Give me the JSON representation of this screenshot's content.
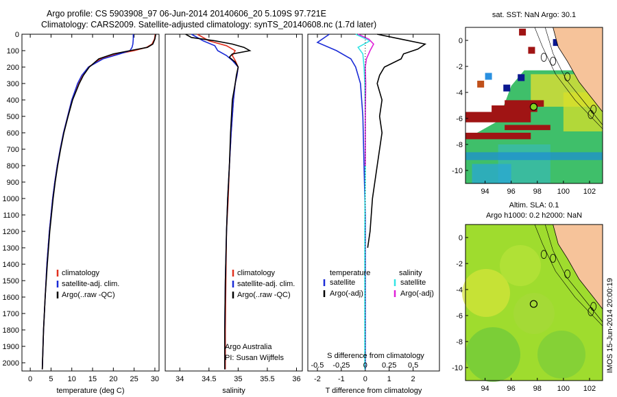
{
  "header": {
    "title_line1": "Argo profile: CS 5903908_97 06-Jun-2014 20140606_20 5.109S 97.721E",
    "title_line2": "Climatology: CARS2009. Satellite-adjusted climatology: synTS_20140608.nc (1.7d later)"
  },
  "colors": {
    "climatology": "#e0301e",
    "satellite": "#1a2bd6",
    "argo": "#000000",
    "salinity_satellite": "#33e5e5",
    "salinity_argo": "#e020d8",
    "land": "#f6c39a",
    "float_marker": "#7fd321"
  },
  "chart_data": [
    {
      "type": "line",
      "panel": "temperature",
      "xlabel": "temperature (deg C)",
      "xlim": [
        -2,
        31
      ],
      "xticks": [
        0,
        5,
        10,
        15,
        20,
        25,
        30
      ],
      "ylim": [
        2050,
        0
      ],
      "yticks": [
        0,
        100,
        200,
        300,
        400,
        500,
        600,
        700,
        800,
        900,
        1000,
        1100,
        1200,
        1300,
        1400,
        1500,
        1600,
        1700,
        1800,
        1900,
        2000
      ],
      "legend": [
        "climatology",
        "satellite-adj. clim.",
        "Argo(..raw -QC)"
      ],
      "series": [
        {
          "name": "climatology",
          "depth": [
            0,
            30,
            60,
            80,
            100,
            120,
            150,
            200,
            250,
            300,
            400,
            500,
            600,
            700,
            800,
            900,
            1000,
            1200,
            1400,
            1600,
            1800,
            2040
          ],
          "values": [
            30.1,
            29.9,
            29.3,
            28,
            25,
            21,
            17,
            14,
            12.5,
            11.5,
            10,
            9,
            8,
            7.2,
            6.5,
            5.9,
            5.4,
            4.6,
            4,
            3.6,
            3.2,
            2.9
          ]
        },
        {
          "name": "satellite-adj. clim.",
          "depth": [
            0,
            30,
            60,
            80,
            100,
            120,
            150,
            200,
            250,
            300,
            400,
            500,
            600,
            700,
            800,
            900,
            1000,
            1200,
            1400,
            1600,
            1800,
            2040
          ],
          "values": [
            24.8,
            24.8,
            24.7,
            24.5,
            24,
            21.5,
            17.5,
            14,
            12.4,
            11.4,
            10,
            9,
            8,
            7.2,
            6.5,
            5.9,
            5.4,
            4.6,
            4,
            3.6,
            3.2,
            2.9
          ]
        },
        {
          "name": "Argo(..raw -QC)",
          "depth": [
            0,
            30,
            60,
            80,
            100,
            120,
            150,
            200,
            250,
            300,
            400,
            500,
            600,
            700,
            800,
            900,
            1000,
            1200,
            1400,
            1600,
            1800,
            2040
          ],
          "values": [
            30.2,
            30,
            29.5,
            28.2,
            24,
            20,
            16.5,
            14.2,
            12.8,
            11.8,
            10.2,
            9.1,
            8.1,
            7.3,
            6.6,
            6,
            5.5,
            4.7,
            4.1,
            3.6,
            3.2,
            2.9
          ]
        }
      ]
    },
    {
      "type": "line",
      "panel": "salinity",
      "xlabel": "salinity",
      "xlim": [
        33.75,
        36.1
      ],
      "xticks": [
        34,
        34.5,
        35,
        35.5,
        36
      ],
      "ylim": [
        2050,
        0
      ],
      "legend": [
        "climatology",
        "satellite-adj. clim.",
        "Argo(..raw -QC)"
      ],
      "annotations": [
        "Argo Australia",
        "PI: Susan Wijffels"
      ],
      "series": [
        {
          "name": "climatology",
          "depth": [
            0,
            40,
            70,
            100,
            130,
            160,
            200,
            250,
            300,
            400,
            600,
            800,
            1000,
            1200,
            1500,
            1800,
            2040
          ],
          "values": [
            34.3,
            34.5,
            34.8,
            34.95,
            34.9,
            34.95,
            35.0,
            34.98,
            34.95,
            34.92,
            34.88,
            34.85,
            34.83,
            34.8,
            34.79,
            34.78,
            34.78
          ]
        },
        {
          "name": "satellite-adj. clim.",
          "depth": [
            0,
            40,
            70,
            100,
            130,
            160,
            200,
            250,
            300,
            400,
            600,
            800,
            1000,
            1200,
            1500,
            1800,
            2040
          ],
          "values": [
            34.2,
            34.4,
            34.6,
            34.65,
            34.8,
            34.9,
            35.0,
            34.98,
            34.95,
            34.92,
            34.88,
            34.85,
            34.82,
            34.8,
            34.78,
            34.77,
            34.77
          ]
        },
        {
          "name": "Argo(..raw -QC)",
          "depth": [
            0,
            20,
            40,
            60,
            80,
            100,
            120,
            140,
            170,
            200,
            250,
            300,
            400,
            600,
            800,
            1000,
            1200,
            1500,
            1800,
            2040
          ],
          "values": [
            34.1,
            34.2,
            34.6,
            34.9,
            35.1,
            35.2,
            34.9,
            34.85,
            34.95,
            35.0,
            34.97,
            34.95,
            34.9,
            34.87,
            34.85,
            34.82,
            34.8,
            34.78,
            34.77,
            34.77
          ]
        }
      ]
    },
    {
      "type": "line",
      "panel": "difference",
      "xlabel": "T difference from climatology",
      "xlabel_top": "S difference from climatology",
      "xlim": [
        -2.4,
        3.1
      ],
      "xticks": [
        -2,
        -1,
        0,
        1,
        2
      ],
      "xticks_top": [
        "-0.5",
        "-0.25",
        "0",
        "0.25",
        "0.5"
      ],
      "ylim": [
        2050,
        0
      ],
      "legend_headers": [
        "temperature",
        "salinity"
      ],
      "legend": [
        "satellite",
        "Argo(-adj)",
        "satellite",
        "Argo(-adj)"
      ],
      "series": [
        {
          "name": "satellite",
          "variable": "temperature",
          "depth": [
            0,
            50,
            100,
            150,
            200,
            300,
            500,
            800,
            1100,
            1500,
            2040
          ],
          "values": [
            -1.5,
            -2,
            -1.2,
            -0.6,
            -0.4,
            -0.2,
            -0.1,
            -0.05,
            0,
            0,
            0
          ]
        },
        {
          "name": "Argo(-adj)",
          "variable": "temperature",
          "depth": [
            0,
            30,
            60,
            90,
            120,
            150,
            200,
            250,
            300,
            400,
            500,
            600,
            800,
            1000,
            1200,
            1300
          ],
          "values": [
            0.5,
            1.5,
            2.5,
            2.2,
            1.6,
            1.5,
            0.8,
            0.6,
            0.5,
            0.7,
            0.6,
            0.7,
            0.5,
            0.3,
            0.2,
            0.1
          ]
        },
        {
          "name": "satellite",
          "variable": "salinity",
          "depth": [
            0,
            40,
            80,
            120,
            200,
            300,
            500,
            800,
            1200,
            1600,
            2040
          ],
          "values": [
            -0.4,
            0.2,
            -0.3,
            -0.1,
            -0.05,
            -0.02,
            0,
            0,
            -0.02,
            -0.02,
            -0.02
          ]
        },
        {
          "name": "Argo(-adj)",
          "variable": "salinity",
          "depth": [
            0,
            30,
            60,
            100,
            150,
            200,
            300,
            500,
            800
          ],
          "values": [
            -0.3,
            0.15,
            0.35,
            0.2,
            0.05,
            0.0,
            0.02,
            0.0,
            0.0
          ]
        }
      ]
    },
    {
      "type": "heatmap",
      "panel": "map-sst",
      "title": "sat. SST: NaN Argo: 30.1",
      "xlim": [
        92.5,
        103
      ],
      "ylim": [
        -11,
        1
      ],
      "xticks": [
        94,
        96,
        98,
        100,
        102
      ],
      "yticks": [
        0,
        -2,
        -4,
        -6,
        -8,
        -10
      ],
      "float_position": [
        97.721,
        -5.109
      ]
    },
    {
      "type": "heatmap",
      "panel": "map-sla",
      "title": "Altim. SLA: 0.1",
      "subtitle": "Argo h1000: 0.2 h2000: NaN",
      "xlim": [
        92.5,
        103
      ],
      "ylim": [
        -11,
        1
      ],
      "xticks": [
        94,
        96,
        98,
        100,
        102
      ],
      "yticks": [
        0,
        -2,
        -4,
        -6,
        -8,
        -10
      ],
      "float_position": [
        97.721,
        -5.109
      ]
    }
  ],
  "footer": {
    "imos_stamp": "IMOS 15-Jun-2014 20:00:19"
  }
}
